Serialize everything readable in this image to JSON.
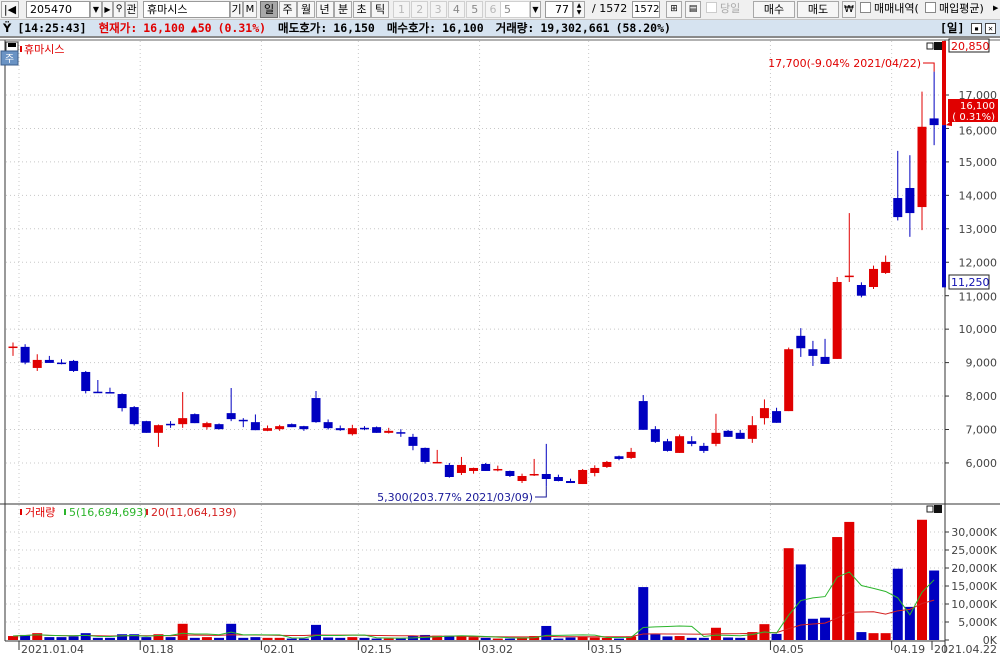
{
  "toolbar": {
    "code": "205470",
    "search_label": "관",
    "name": "휴마시스",
    "gi_label": "기",
    "m_label": "M",
    "periods": [
      "일",
      "주",
      "월",
      "년",
      "분",
      "초",
      "틱"
    ],
    "selected_period": "일",
    "numbers": [
      "1",
      "2",
      "3",
      "4",
      "5",
      "6"
    ],
    "interval": "5",
    "count": "77",
    "total": "/ 1572",
    "total_input": "1572",
    "today_label": "당일",
    "buy_label": "매수",
    "sell_label": "매도",
    "won_label": "₩",
    "trade_history_label": "매매내역(",
    "avg_buy_label": "매입평균)"
  },
  "info": {
    "time": "[14:25:43]",
    "current_label": "현재가:",
    "current_price": "16,100",
    "change": "▲50",
    "change_pct": "(0.31%)",
    "ask_label": "매도호가:",
    "ask": "16,150",
    "bid_label": "매수호가:",
    "bid": "16,100",
    "volume_label": "거래량:",
    "volume": "19,302,661",
    "volume_pct": "(58.20%)",
    "period_tag": "[일]"
  },
  "price_pane": {
    "legend": "휴마시스",
    "tab_label": "주",
    "upper_limit": "20,850",
    "current_price": "16,100",
    "current_change": "( 0.31%)",
    "lower_limit": "11,250",
    "high_annotation": "17,700(-9.04% 2021/04/22)",
    "low_annotation": "5,300(203.77% 2021/03/09)",
    "y_ticks": [
      "6,000",
      "7,000",
      "8,000",
      "9,000",
      "10,000",
      "11,000",
      "12,000",
      "13,000",
      "14,000",
      "15,000",
      "16,000",
      "17,000"
    ]
  },
  "volume_pane": {
    "legend": "거래량",
    "ma5_legend": "5(16,694,693)",
    "ma20_legend": "20(11,064,139)",
    "y_ticks": [
      "0K",
      "5,000K",
      "10,000K",
      "15,000K",
      "20,000K",
      "25,000K",
      "30,000K"
    ]
  },
  "colors": {
    "up": "#e00000",
    "down": "#0000c0",
    "ma5": "#2cb52c",
    "ma20": "#d42020",
    "info_bg": "#d6e3f0"
  },
  "chart_data": {
    "type": "candlestick",
    "x_labels": [
      {
        "index": 0,
        "label": "2021.01.04"
      },
      {
        "index": 10,
        "label": "01.18"
      },
      {
        "index": 20,
        "label": "02.01"
      },
      {
        "index": 28,
        "label": "02.15"
      },
      {
        "index": 38,
        "label": "03.02"
      },
      {
        "index": 47,
        "label": "03.15"
      },
      {
        "index": 62,
        "label": "04.05"
      },
      {
        "index": 72,
        "label": "04.19"
      },
      {
        "index": 76,
        "label": "2021.04.22"
      }
    ],
    "price_range": [
      5000,
      18000
    ],
    "volume_range_k": [
      0,
      35000
    ],
    "ohlc": [
      [
        9450,
        9600,
        9200,
        9480
      ],
      [
        9470,
        9550,
        8950,
        9000
      ],
      [
        8840,
        9250,
        8750,
        9080
      ],
      [
        9080,
        9200,
        9000,
        8990
      ],
      [
        9000,
        9100,
        8950,
        8990
      ],
      [
        9050,
        9080,
        8720,
        8750
      ],
      [
        8720,
        8750,
        8080,
        8150
      ],
      [
        8130,
        8480,
        8100,
        8120
      ],
      [
        8120,
        8250,
        8080,
        8100
      ],
      [
        8060,
        8080,
        7540,
        7640
      ],
      [
        7670,
        7700,
        7120,
        7160
      ],
      [
        7250,
        7260,
        6900,
        6900
      ],
      [
        6900,
        7150,
        6480,
        7130
      ],
      [
        7170,
        7250,
        7050,
        7160
      ],
      [
        7160,
        8120,
        7050,
        7340
      ],
      [
        7460,
        7480,
        7190,
        7190
      ],
      [
        7070,
        7230,
        7000,
        7190
      ],
      [
        7160,
        7180,
        7000,
        7010
      ],
      [
        7490,
        8240,
        7250,
        7310
      ],
      [
        7290,
        7340,
        7070,
        7280
      ],
      [
        7220,
        7450,
        6980,
        6980
      ],
      [
        6960,
        7120,
        6950,
        7040
      ],
      [
        7010,
        7140,
        6960,
        7100
      ],
      [
        7160,
        7180,
        7070,
        7070
      ],
      [
        7100,
        7110,
        6960,
        7010
      ],
      [
        7940,
        8150,
        7200,
        7220
      ],
      [
        7220,
        7300,
        7000,
        7040
      ],
      [
        7040,
        7120,
        6960,
        6980
      ],
      [
        6860,
        7140,
        6820,
        7040
      ],
      [
        7050,
        7100,
        6980,
        7040
      ],
      [
        7070,
        7090,
        6900,
        6900
      ],
      [
        6900,
        7050,
        6880,
        6960
      ],
      [
        6920,
        7010,
        6780,
        6910
      ],
      [
        6780,
        6870,
        6380,
        6510
      ],
      [
        6450,
        6460,
        5980,
        6030
      ],
      [
        6010,
        6390,
        6000,
        6030
      ],
      [
        5940,
        6000,
        5560,
        5580
      ],
      [
        5700,
        6180,
        5640,
        5940
      ],
      [
        5760,
        5860,
        5680,
        5850
      ],
      [
        5970,
        6000,
        5760,
        5760
      ],
      [
        5810,
        5920,
        5750,
        5820
      ],
      [
        5760,
        5770,
        5580,
        5610
      ],
      [
        5460,
        5680,
        5400,
        5610
      ],
      [
        5660,
        6120,
        5610,
        5670
      ],
      [
        5670,
        6570,
        5300,
        5520
      ],
      [
        5580,
        5650,
        5450,
        5460
      ],
      [
        5460,
        5530,
        5400,
        5400
      ],
      [
        5370,
        5820,
        5370,
        5790
      ],
      [
        5700,
        5930,
        5600,
        5850
      ],
      [
        5880,
        6060,
        5850,
        6030
      ],
      [
        6200,
        6220,
        6080,
        6120
      ],
      [
        6150,
        6450,
        6120,
        6330
      ],
      [
        7850,
        8030,
        6990,
        6990
      ],
      [
        7010,
        7100,
        6600,
        6630
      ],
      [
        6650,
        6720,
        6340,
        6360
      ],
      [
        6300,
        6850,
        6300,
        6800
      ],
      [
        6650,
        6800,
        6500,
        6570
      ],
      [
        6510,
        6600,
        6300,
        6360
      ],
      [
        6570,
        7470,
        6500,
        6900
      ],
      [
        6960,
        6990,
        6780,
        6780
      ],
      [
        6900,
        6990,
        6720,
        6720
      ],
      [
        6720,
        7400,
        6600,
        7130
      ],
      [
        7340,
        7900,
        7150,
        7640
      ],
      [
        7550,
        7650,
        7200,
        7200
      ],
      [
        7550,
        9450,
        7550,
        9400
      ],
      [
        9800,
        10030,
        9170,
        9430
      ],
      [
        9400,
        9650,
        8900,
        9200
      ],
      [
        9170,
        9710,
        8960,
        8960
      ],
      [
        9110,
        11560,
        9110,
        11410
      ],
      [
        11570,
        13470,
        11410,
        11600
      ],
      [
        11320,
        11400,
        10950,
        11000
      ],
      [
        11260,
        11900,
        11200,
        11800
      ],
      [
        11680,
        12200,
        11650,
        12010
      ],
      [
        13920,
        15330,
        13250,
        13350
      ],
      [
        14220,
        15200,
        12760,
        13470
      ],
      [
        13650,
        17100,
        12960,
        16050
      ],
      [
        16300,
        17700,
        15500,
        16100
      ]
    ],
    "volume_k": [
      1100,
      1400,
      1900,
      800,
      800,
      1000,
      1900,
      600,
      600,
      1600,
      1600,
      800,
      1600,
      800,
      4500,
      600,
      800,
      600,
      4500,
      600,
      800,
      600,
      600,
      400,
      400,
      4200,
      700,
      600,
      800,
      600,
      400,
      400,
      400,
      1100,
      1400,
      1200,
      1200,
      1000,
      800,
      600,
      400,
      400,
      600,
      1100,
      3900,
      400,
      700,
      1000,
      700,
      600,
      400,
      1000,
      14700,
      1600,
      1000,
      1100,
      600,
      600,
      3400,
      700,
      600,
      2200,
      4400,
      1700,
      25500,
      21000,
      5900,
      6200,
      28600,
      32800,
      2200,
      1900,
      1900,
      19800,
      9200,
      33400,
      19303
    ]
  }
}
